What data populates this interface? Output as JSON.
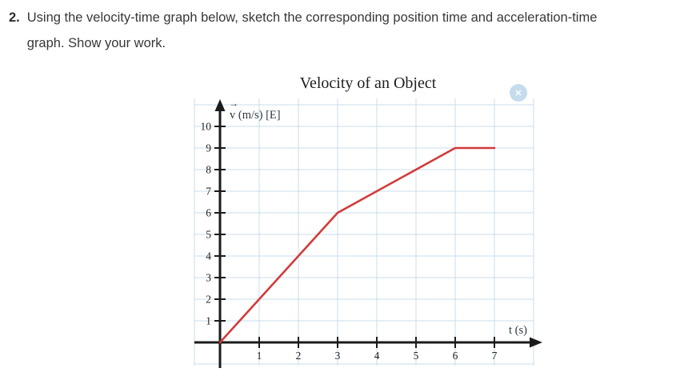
{
  "question": {
    "number": "2.",
    "text": "Using the velocity-time graph below, sketch the corresponding position time and acceleration-time graph. Show your work."
  },
  "watermark": {
    "glyph": "✕"
  },
  "chart_data": {
    "type": "line",
    "title": "Velocity of an Object",
    "xlabel": "t (s)",
    "ylabel": "v (m/s) [E]",
    "ylabel_vector_arrow": "→",
    "x_ticks": [
      1,
      2,
      3,
      4,
      5,
      6,
      7
    ],
    "y_ticks": [
      1,
      2,
      3,
      4,
      5,
      6,
      7,
      8,
      9,
      10
    ],
    "xlim": [
      0,
      7.7
    ],
    "ylim": [
      0,
      11
    ],
    "grid": true,
    "grid_color": "#c9dcec",
    "axis_color": "#1b1b1b",
    "tick_label_color": "#222222",
    "series": [
      {
        "name": "velocity",
        "color": "#d23b3b",
        "points_t_v": [
          [
            0,
            0
          ],
          [
            3,
            6
          ],
          [
            6,
            9
          ],
          [
            7,
            9
          ]
        ]
      }
    ]
  }
}
